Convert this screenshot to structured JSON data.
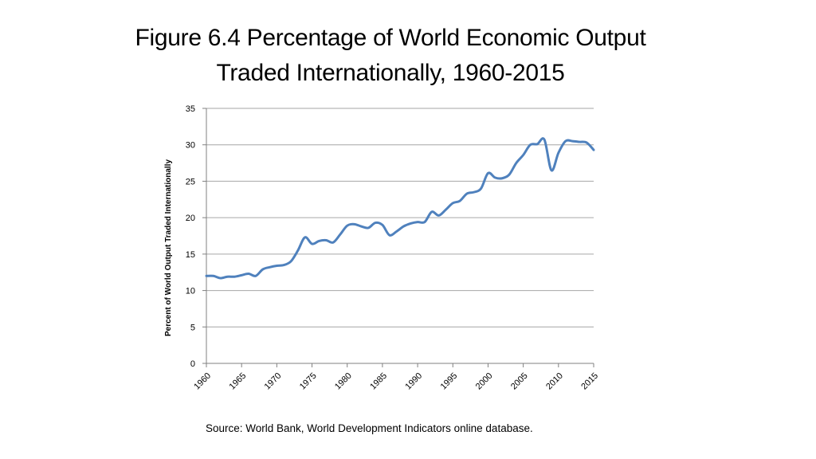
{
  "slide": {
    "title_line1": "Figure 6.4 Percentage of World Economic Output",
    "title_line2": "Traded Internationally, 1960-2015",
    "source": "Source: World Bank, World Development Indicators online database."
  },
  "chart_data": {
    "type": "line",
    "ylabel": "Percent of World Output Traded Internationally",
    "xlabel": "",
    "ylim": [
      0,
      35
    ],
    "xlim": [
      1960,
      2015
    ],
    "yticks": [
      0,
      5,
      10,
      15,
      20,
      25,
      30,
      35
    ],
    "xticks": [
      1960,
      1965,
      1970,
      1975,
      1980,
      1985,
      1990,
      1995,
      2000,
      2005,
      2010,
      2015
    ],
    "grid": "horizontal",
    "legend": "none",
    "line_color": "#4f81bd",
    "series": [
      {
        "x": [
          1960,
          1961,
          1962,
          1963,
          1964,
          1965,
          1966,
          1967,
          1968,
          1969,
          1970,
          1971,
          1972,
          1973,
          1974,
          1975,
          1976,
          1977,
          1978,
          1979,
          1980,
          1981,
          1982,
          1983,
          1984,
          1985,
          1986,
          1987,
          1988,
          1989,
          1990,
          1991,
          1992,
          1993,
          1994,
          1995,
          1996,
          1997,
          1998,
          1999,
          2000,
          2001,
          2002,
          2003,
          2004,
          2005,
          2006,
          2007,
          2008,
          2009,
          2010,
          2011,
          2012,
          2013,
          2014,
          2015
        ],
        "values": [
          12.0,
          12.0,
          11.7,
          11.9,
          11.9,
          12.1,
          12.3,
          12.0,
          12.9,
          13.2,
          13.4,
          13.5,
          14.0,
          15.5,
          17.3,
          16.4,
          16.8,
          16.9,
          16.6,
          17.7,
          18.9,
          19.1,
          18.8,
          18.6,
          19.3,
          19.0,
          17.6,
          18.1,
          18.8,
          19.2,
          19.4,
          19.4,
          20.8,
          20.3,
          21.1,
          22.0,
          22.3,
          23.3,
          23.5,
          24.0,
          26.1,
          25.5,
          25.4,
          25.9,
          27.5,
          28.6,
          30.0,
          30.1,
          30.7,
          26.5,
          28.9,
          30.5,
          30.5,
          30.4,
          30.3,
          29.3
        ]
      }
    ]
  }
}
